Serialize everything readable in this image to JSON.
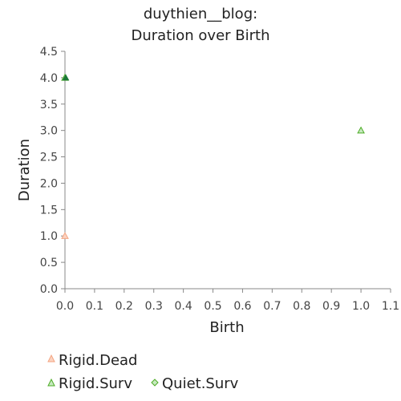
{
  "chart_data": {
    "type": "scatter",
    "title_lines": [
      "duythien__blog:",
      "Duration over Birth"
    ],
    "xlabel": "Birth",
    "ylabel": "Duration",
    "xlim": [
      0,
      1.1
    ],
    "ylim": [
      0,
      4.5
    ],
    "xticks": [
      "0.0",
      "0.1",
      "0.2",
      "0.3",
      "0.4",
      "0.5",
      "0.6",
      "0.7",
      "0.8",
      "0.9",
      "1.0",
      "1.1"
    ],
    "yticks": [
      "0.0",
      "0.5",
      "1.0",
      "1.5",
      "2.0",
      "2.5",
      "3.0",
      "3.5",
      "4.0",
      "4.5"
    ],
    "grid": false,
    "legend_position": "bottom-left",
    "series": [
      {
        "name": "Rigid.Dead",
        "marker": "triangle",
        "color": "#f4a582",
        "points": [
          [
            0.0,
            1.0
          ]
        ]
      },
      {
        "name": "Rigid.Surv",
        "marker": "triangle",
        "color": "#4dac26",
        "points": [
          [
            1.0,
            3.0
          ],
          [
            0.0,
            4.0
          ]
        ]
      },
      {
        "name": "Quiet.Surv",
        "marker": "diamond",
        "color": "#4dac26",
        "points": []
      }
    ],
    "overlap_marker": {
      "description": "dark triangle at (0,4)",
      "color": "#1b7837"
    }
  }
}
